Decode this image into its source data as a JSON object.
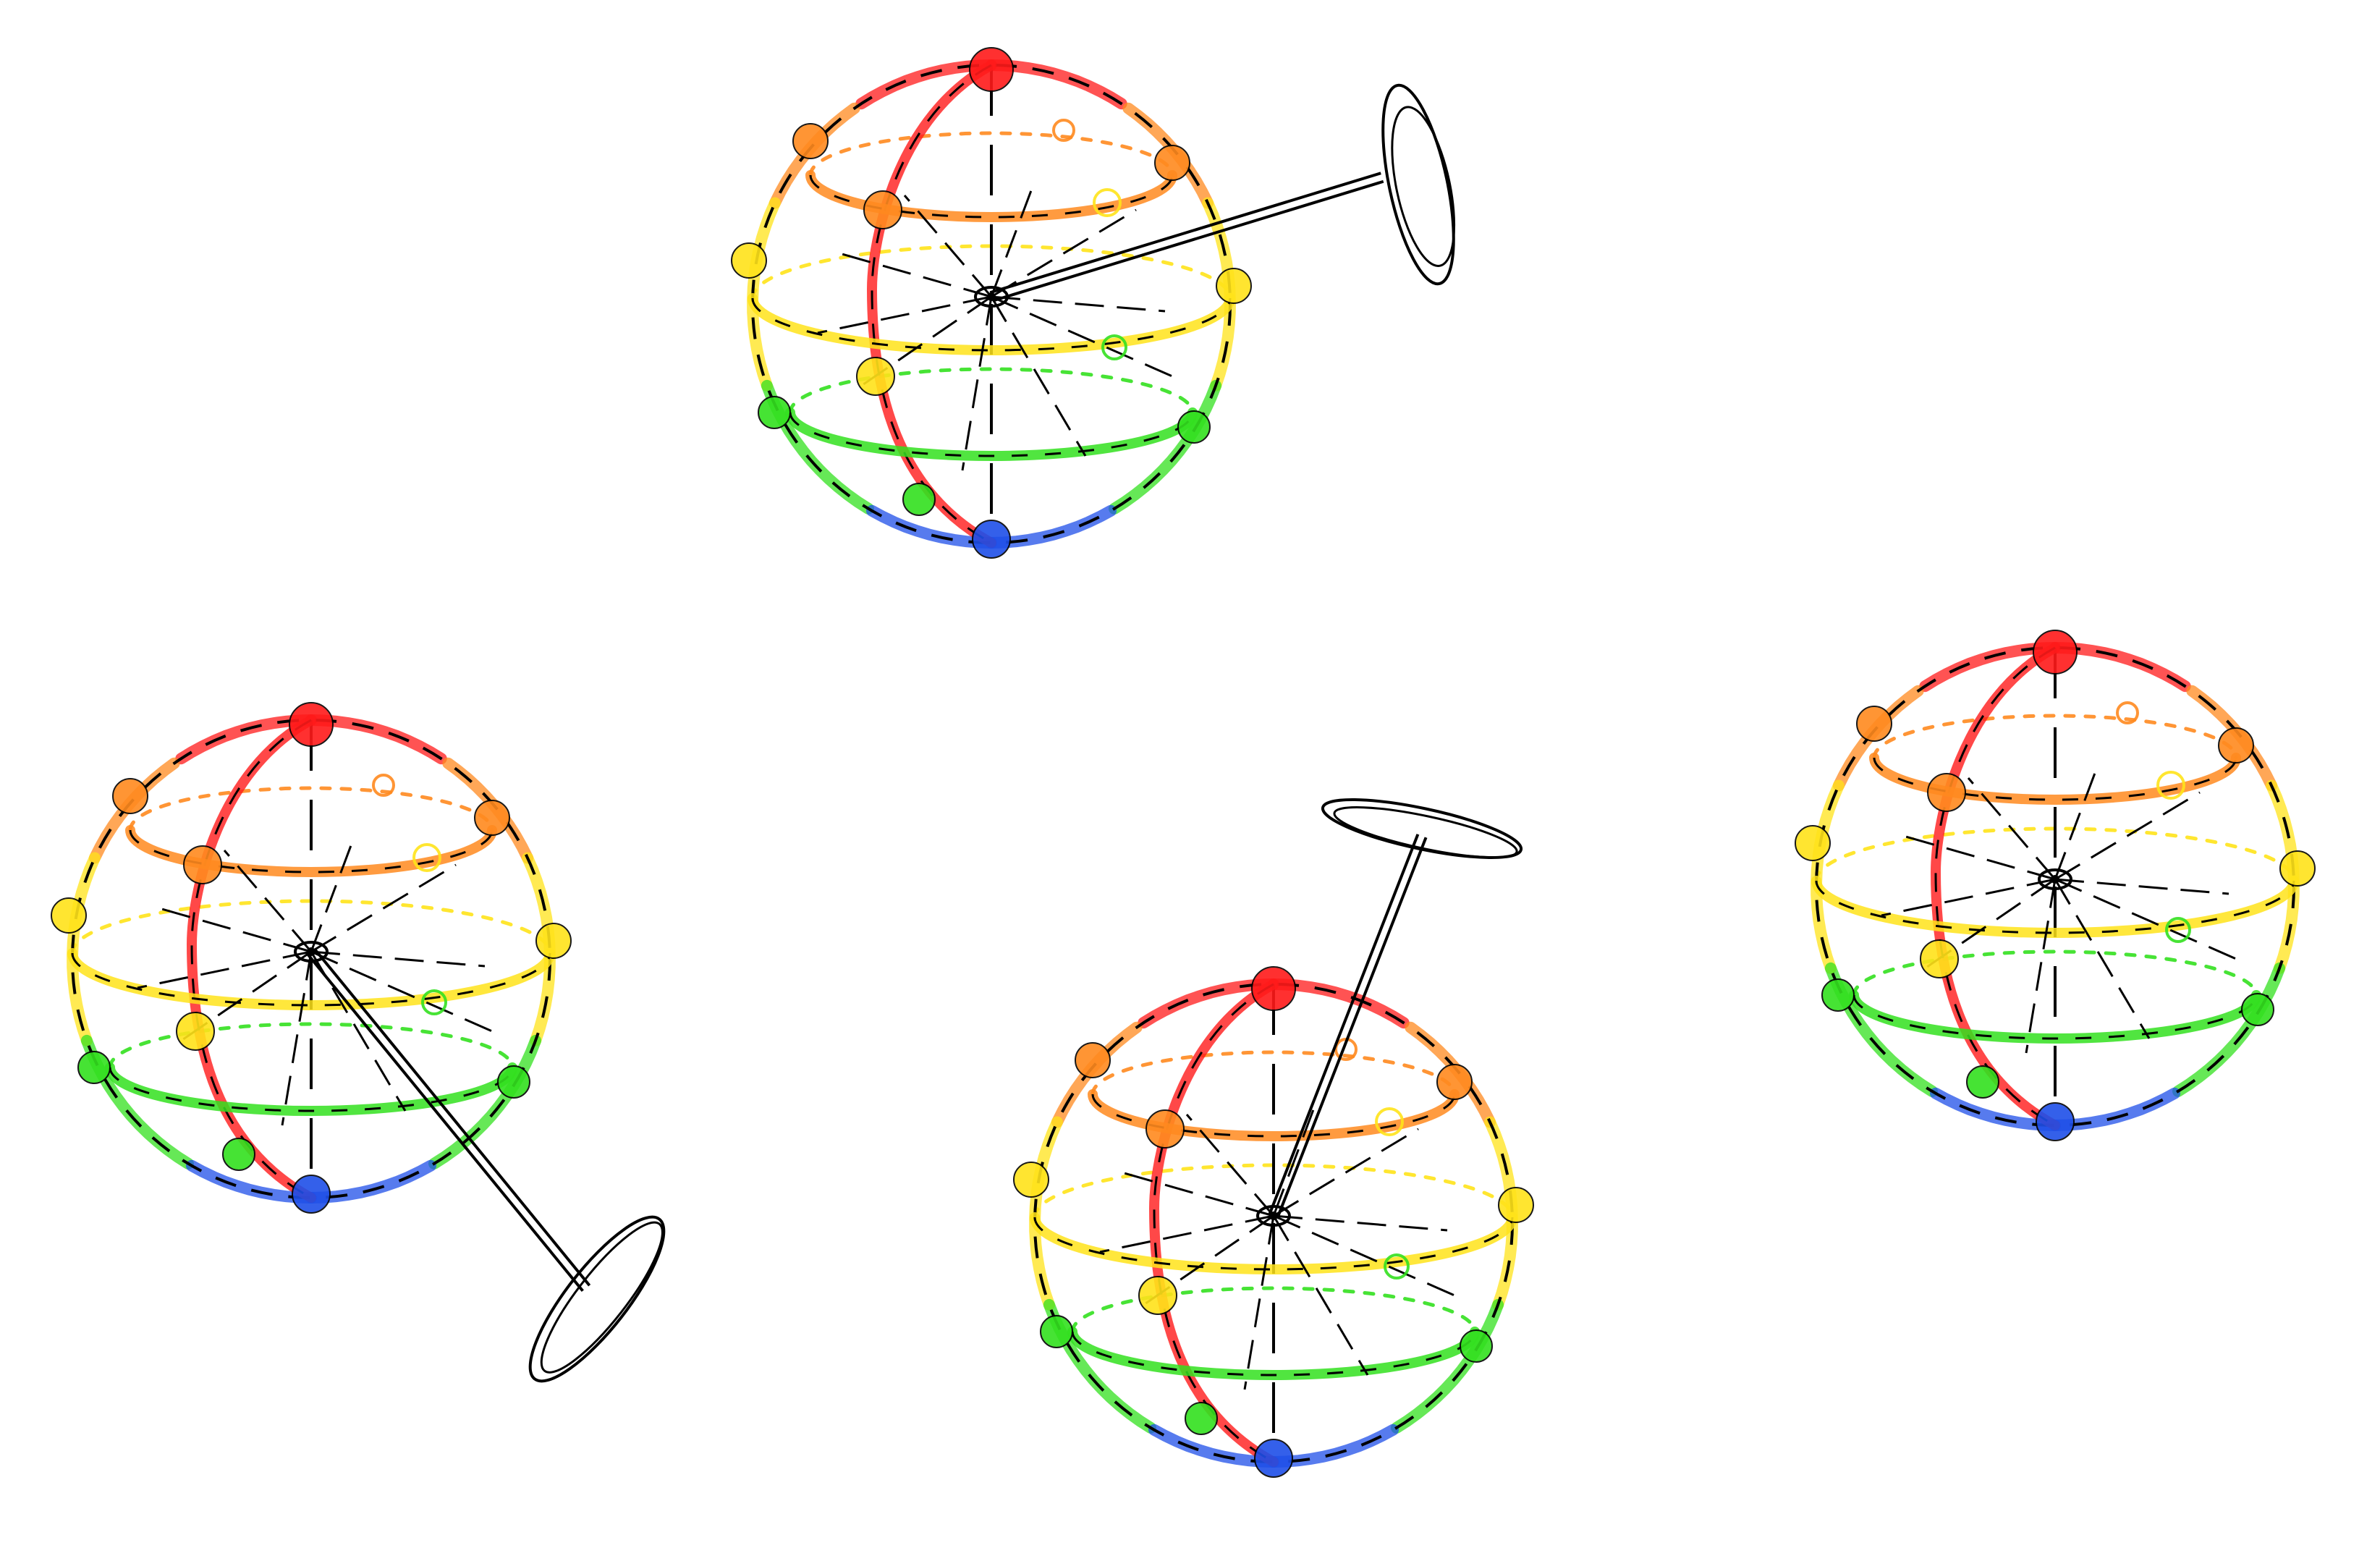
{
  "palette": {
    "top": "#ff1a1a",
    "upper": "#ff8a1f",
    "equator": "#ffe31a",
    "lower": "#33e01f",
    "bottom": "#1f4fe8",
    "ink": "#000000",
    "background": "#ffffff"
  },
  "figures": [
    {
      "id": "sphere-top-center",
      "paddle": "right"
    },
    {
      "id": "sphere-bottom-left",
      "paddle": "down-right"
    },
    {
      "id": "sphere-bottom-center",
      "paddle": "up"
    },
    {
      "id": "sphere-right",
      "paddle": "none"
    }
  ]
}
